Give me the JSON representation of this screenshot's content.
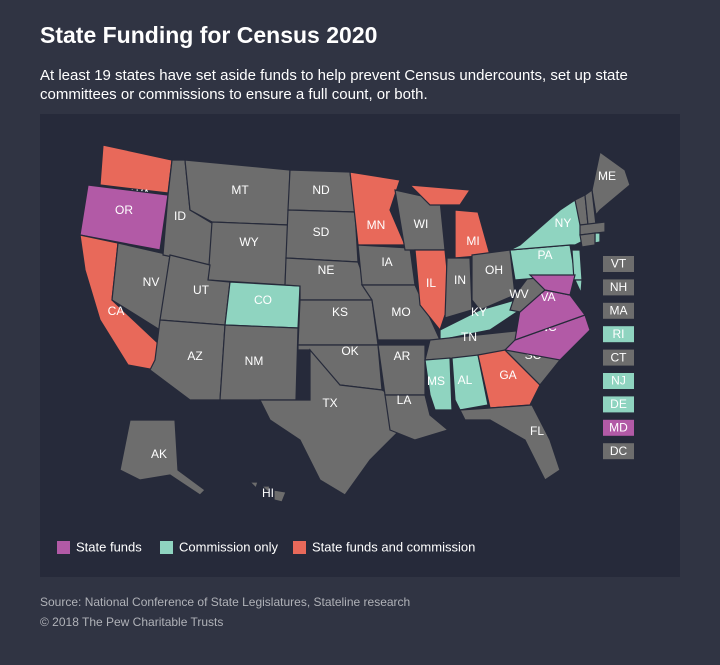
{
  "header": {
    "title": "State Funding for Census 2020",
    "subtitle": "At least 19 states have set aside funds to help prevent Census undercounts, set up state committees or commissions to ensure a full count, or both."
  },
  "map": {
    "states": [
      {
        "label": "WA",
        "color": "#e8695a"
      },
      {
        "label": "OR",
        "color": "#b25aa6"
      },
      {
        "label": "CA",
        "color": "#e8695a"
      },
      {
        "label": "NV",
        "color": "#6d6d6d"
      },
      {
        "label": "ID",
        "color": "#6d6d6d"
      },
      {
        "label": "MT",
        "color": "#6d6d6d"
      },
      {
        "label": "WY",
        "color": "#6d6d6d"
      },
      {
        "label": "UT",
        "color": "#6d6d6d"
      },
      {
        "label": "AZ",
        "color": "#6d6d6d"
      },
      {
        "label": "CO",
        "color": "#8fd4c0"
      },
      {
        "label": "NM",
        "color": "#6d6d6d"
      },
      {
        "label": "ND",
        "color": "#6d6d6d"
      },
      {
        "label": "SD",
        "color": "#6d6d6d"
      },
      {
        "label": "NE",
        "color": "#6d6d6d"
      },
      {
        "label": "KS",
        "color": "#6d6d6d"
      },
      {
        "label": "OK",
        "color": "#6d6d6d"
      },
      {
        "label": "TX",
        "color": "#6d6d6d"
      },
      {
        "label": "MN",
        "color": "#e8695a"
      },
      {
        "label": "IA",
        "color": "#6d6d6d"
      },
      {
        "label": "MO",
        "color": "#6d6d6d"
      },
      {
        "label": "AR",
        "color": "#6d6d6d"
      },
      {
        "label": "LA",
        "color": "#6d6d6d"
      },
      {
        "label": "WI",
        "color": "#6d6d6d"
      },
      {
        "label": "IL",
        "color": "#e8695a"
      },
      {
        "label": "MI",
        "color": "#e8695a"
      },
      {
        "label": "IN",
        "color": "#6d6d6d"
      },
      {
        "label": "OH",
        "color": "#6d6d6d"
      },
      {
        "label": "KY",
        "color": "#8fd4c0"
      },
      {
        "label": "TN",
        "color": "#6d6d6d"
      },
      {
        "label": "MS",
        "color": "#8fd4c0"
      },
      {
        "label": "AL",
        "color": "#8fd4c0"
      },
      {
        "label": "GA",
        "color": "#e8695a"
      },
      {
        "label": "FL",
        "color": "#6d6d6d"
      },
      {
        "label": "SC",
        "color": "#6d6d6d"
      },
      {
        "label": "NC",
        "color": "#b25aa6"
      },
      {
        "label": "VA",
        "color": "#b25aa6"
      },
      {
        "label": "WV",
        "color": "#6d6d6d"
      },
      {
        "label": "PA",
        "color": "#8fd4c0"
      },
      {
        "label": "NY",
        "color": "#8fd4c0"
      },
      {
        "label": "ME",
        "color": "#6d6d6d"
      },
      {
        "label": "AK",
        "color": "#6d6d6d"
      },
      {
        "label": "HI",
        "color": "#6d6d6d"
      },
      {
        "label": "VT",
        "color": "#6d6d6d"
      },
      {
        "label": "NH",
        "color": "#6d6d6d"
      },
      {
        "label": "MA",
        "color": "#6d6d6d"
      },
      {
        "label": "RI",
        "color": "#8fd4c0"
      },
      {
        "label": "CT",
        "color": "#6d6d6d"
      },
      {
        "label": "NJ",
        "color": "#8fd4c0"
      },
      {
        "label": "DE",
        "color": "#8fd4c0"
      },
      {
        "label": "MD",
        "color": "#b25aa6"
      },
      {
        "label": "DC",
        "color": "#6d6d6d"
      }
    ],
    "legend": [
      {
        "label": "State funds",
        "color": "#b25aa6"
      },
      {
        "label": "Commission only",
        "color": "#8fd4c0"
      },
      {
        "label": "State funds and commission",
        "color": "#e8695a"
      }
    ]
  },
  "footer": {
    "source": "Source: National Conference of State Legislatures, Stateline research",
    "copyright": "© 2018 The Pew Charitable Trusts"
  }
}
